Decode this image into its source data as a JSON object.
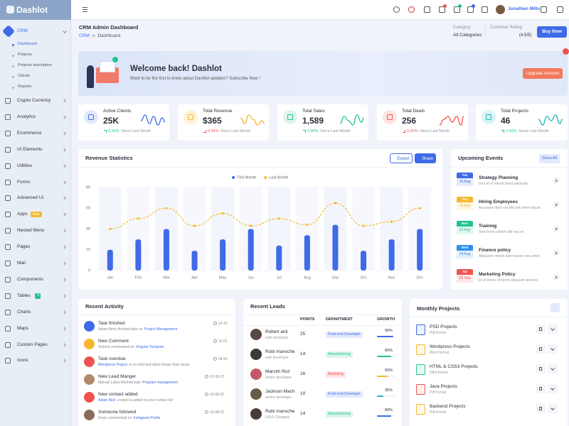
{
  "sidebar": {
    "brand": "Dashlot",
    "menu": [
      {
        "label": "CRM",
        "children": [
          "Dashboard",
          "Projects",
          "Projects description",
          "Clients",
          "Reports"
        ]
      },
      {
        "label": "Crypto Currency"
      },
      {
        "label": "Analytics"
      },
      {
        "label": "Ecommerce"
      },
      {
        "label": "UI Elements"
      },
      {
        "label": "Utilities"
      },
      {
        "label": "Forms"
      },
      {
        "label": "Advanced UI"
      },
      {
        "label": "Apps",
        "badge": "New"
      },
      {
        "label": "Nested Menu"
      },
      {
        "label": "Pages"
      },
      {
        "label": "Mail"
      },
      {
        "label": "Components"
      },
      {
        "label": "Tables",
        "badge": "3"
      },
      {
        "label": "Charts"
      },
      {
        "label": "Maps"
      },
      {
        "label": "Custom Pages"
      },
      {
        "label": "Icons"
      }
    ]
  },
  "topbar": {
    "user": "Jonathan Mills"
  },
  "header": {
    "title": "CRM Admin Dashboard",
    "breadcrumb": [
      "CRM",
      "»",
      "Dashboard"
    ],
    "category_label": "Category",
    "category_value": "All Categories",
    "rating_label": "Customer Rating",
    "rating_text": "(4.5/5)",
    "button": "Buy Now"
  },
  "banner": {
    "title": "Welcome back! Dashlot",
    "text": "Want to be the first to know about Dashlot updates? Subscribe Now !",
    "button": "Upgrade Account"
  },
  "stats": [
    {
      "title": "Active Clients",
      "value": "25K",
      "change": "0.35%",
      "trend": "up",
      "note": "Since Last Month"
    },
    {
      "title": "Total Revenue",
      "value": "$365",
      "change": "0.54%",
      "trend": "down",
      "note": "Since Last Month"
    },
    {
      "title": "Total Sales",
      "value": "1,589",
      "change": "0.96%",
      "trend": "up",
      "note": "Since Last Month"
    },
    {
      "title": "Total Deals",
      "value": "256",
      "change": "0.42%",
      "trend": "down",
      "note": "Since Last Month"
    },
    {
      "title": "Total Projects",
      "value": "46",
      "change": "0.42%",
      "trend": "up",
      "note": "Since Last Month"
    }
  ],
  "revenue_actions": [
    "Export",
    "Share"
  ],
  "chart_data": {
    "type": "bar",
    "title": "Revenue Statistics",
    "categories": [
      "Jan",
      "Feb",
      "Mar",
      "Apr",
      "May",
      "Jun",
      "Jul",
      "Aug",
      "Sep",
      "Oct",
      "Nov",
      "Dec"
    ],
    "series": [
      {
        "name": "This Month",
        "type": "bar",
        "color": "#3f6ae8",
        "values": [
          20,
          30,
          40,
          19,
          30,
          40,
          24,
          34,
          44,
          19,
          30,
          40
        ]
      },
      {
        "name": "Last Month",
        "type": "line",
        "color": "#f5b82e",
        "dashed": true,
        "values": [
          40,
          50,
          60,
          43,
          55,
          43,
          50,
          44,
          65,
          43,
          47,
          60
        ]
      }
    ],
    "ylim": [
      0,
      80
    ],
    "yticks": [
      0,
      20,
      40,
      60,
      80
    ],
    "legend": "top"
  },
  "events": {
    "title": "Upcoming Events",
    "action": "Show All",
    "items": [
      {
        "day": "Tue",
        "date": "16 Aug",
        "title": "Strategy Planning",
        "text": "Duo et et rebum bead takimata."
      },
      {
        "day": "Thu",
        "date": "16 Aug",
        "title": "Hiring Employees",
        "text": "Accusam diam est elitr est lorem ipsum."
      },
      {
        "day": "Mon",
        "date": "22 Aug",
        "title": "Training",
        "text": "Stet lorem rebum elitr sea et."
      },
      {
        "day": "Wed",
        "date": "24 Aug",
        "title": "Finance policy",
        "text": "Aliquyam rebum dolor ipsum sea amet."
      },
      {
        "day": "Sat",
        "date": "06 Sep",
        "title": "Marketing Policy",
        "text": "Et at lorem et lorem aliquyam dolores."
      }
    ]
  },
  "activity": {
    "title": "Recent Activity",
    "items": [
      {
        "title": "Task finished",
        "pre": "Adam Berry finished task on",
        "link": "Project Management",
        "time": "14:15"
      },
      {
        "title": "New Comment",
        "pre": "Victoria commented on",
        "link": "Angular Template",
        "time": "12:01"
      },
      {
        "title": "Task overdue",
        "link": "Wordpress Project",
        "post": "is on hold and takes longer than usual.",
        "time": "09:43"
      },
      {
        "title": "New Lead Manger",
        "pre": "Manuel Labor finished task",
        "link": "Program management",
        "time": "10-08-22"
      },
      {
        "title": "New contact added",
        "link": "Adam Rick",
        "post": "contact is added to your contact list",
        "time": "10-08-22"
      },
      {
        "title": "Someone followed",
        "pre": "Gesic commented on",
        "link": "Instagram Profile",
        "time": "10-08-22"
      }
    ]
  },
  "leads": {
    "title": "Recent Leads",
    "columns": [
      "POINTS",
      "DEPARTMENT",
      "GROWTH"
    ],
    "rows": [
      {
        "name": "Robert anii",
        "role": "web developer",
        "points": 25,
        "department": "Front-end Developer",
        "growth": "90%"
      },
      {
        "name": "Rubi mansche",
        "role": "web developer",
        "points": 14,
        "department": "Manufacturing",
        "growth": "80%"
      },
      {
        "name": "Marckh Roz",
        "role": "senior developer",
        "points": 16,
        "department": "Marketing",
        "growth": "60%"
      },
      {
        "name": "Jackson Mach",
        "role": "senior developer",
        "points": 10,
        "department": "Front-end Developer",
        "growth": "35%"
      },
      {
        "name": "Rubi mansche",
        "role": "UI/UX Designer",
        "points": 14,
        "department": "Manufacturing",
        "growth": "80%"
      }
    ]
  },
  "projects": {
    "title": "Monthly Projects",
    "items": [
      {
        "name": "PSD Projects",
        "format": "Pdf format"
      },
      {
        "name": "Wordpress Projects",
        "format": "Word format"
      },
      {
        "name": "HTML & CSS3 Projects",
        "format": "Html format"
      },
      {
        "name": "Java Projects",
        "format": "Pdf format"
      },
      {
        "name": "Backend Projects",
        "format": "Pdf format"
      }
    ]
  }
}
